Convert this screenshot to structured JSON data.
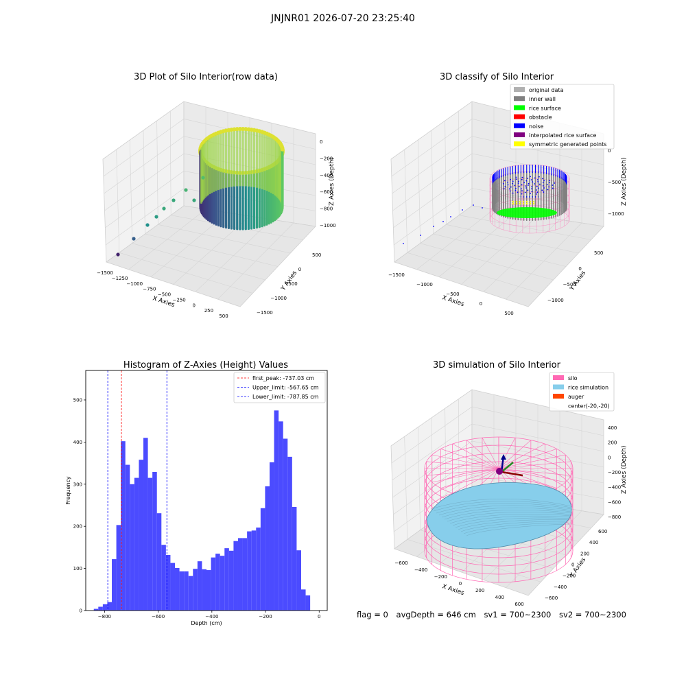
{
  "suptitle": "JNJNR01 2026-07-20 23:25:40",
  "status": {
    "flag": "flag = 0",
    "avg_depth": "avgDepth = 646 cm",
    "sv1": "sv1 = 700~2300",
    "sv2": "sv2 = 700~2300"
  },
  "colors": {
    "original_data": "#b0b0b0",
    "inner_wall": "#808080",
    "rice_surface": "#00ff00",
    "obstacle": "#ff0000",
    "noise": "#0000ff",
    "interpolated_rice_surface": "#800080",
    "symmetric_generated_points": "#ffff00",
    "silo": "#ff69b4",
    "rice_simulation": "#87ceeb",
    "auger": "#ff4500",
    "histogram_bar": "#4b4bff"
  },
  "chart_data": [
    {
      "type": "scatter",
      "title": "3D Plot of Silo Interior(row data)",
      "xlabel": "X Axies",
      "ylabel": "Y Axies",
      "zlabel": "Z Axies (Depth)",
      "xticks": [
        "−1500",
        "−1250",
        "−1000",
        "−750",
        "−500",
        "−250",
        "0",
        "250",
        "500"
      ],
      "yticks": [
        "−1500",
        "−1000",
        "−500",
        "0",
        "500"
      ],
      "zticks": [
        "0",
        "−200",
        "−400",
        "−600",
        "−800",
        "−1000"
      ],
      "colormap": "viridis"
    },
    {
      "type": "scatter",
      "title": "3D classify of Silo Interior",
      "xlabel": "X Axies",
      "ylabel": "Y Axies",
      "zlabel": "Z Axies (Depth)",
      "xticks": [
        "−1500",
        "−1000",
        "−500",
        "0",
        "500"
      ],
      "yticks": [
        "−1000",
        "−500",
        "0",
        "500"
      ],
      "zticks": [
        "0",
        "−500",
        "−1000"
      ],
      "legend": [
        "original data",
        "inner wall",
        "rice surface",
        "obstacle",
        "noise",
        "interpolated rice surface",
        "symmetric generated points"
      ],
      "legend_position": "top-right"
    },
    {
      "type": "bar",
      "title": "Histogram of Z-Axies (Height) Values",
      "xlabel": "Depth (cm)",
      "ylabel": "Frequency",
      "xlim": [
        -870,
        30
      ],
      "ylim": [
        0,
        570
      ],
      "xticks": [
        -800,
        -600,
        -400,
        -200,
        0
      ],
      "yticks": [
        0,
        100,
        200,
        300,
        400,
        500
      ],
      "bin_start": -840,
      "bin_width": 16.8,
      "values": [
        4,
        9,
        15,
        20,
        122,
        203,
        402,
        346,
        300,
        315,
        358,
        410,
        315,
        329,
        231,
        156,
        132,
        113,
        101,
        93,
        93,
        82,
        99,
        117,
        98,
        96,
        126,
        135,
        130,
        148,
        142,
        165,
        172,
        172,
        188,
        190,
        197,
        243,
        295,
        352,
        475,
        449,
        408,
        365,
        246,
        143,
        50,
        36
      ],
      "vlines": [
        {
          "label": "first_peak: -737.03 cm",
          "x": -737.03,
          "color": "#ff0000"
        },
        {
          "label": "Upper_limit: -567.65 cm",
          "x": -567.65,
          "color": "#0000ff"
        },
        {
          "label": "Lower_limit: -787.85 cm",
          "x": -787.85,
          "color": "#0000ff"
        }
      ],
      "legend_position": "top-right"
    },
    {
      "type": "area",
      "title": "3D simulation of Silo Interior",
      "xlabel": "X Axies",
      "ylabel": "Y Axies",
      "zlabel": "Z Axies (Depth)",
      "xticks": [
        "−600",
        "−400",
        "−200",
        "0",
        "200",
        "400",
        "600"
      ],
      "yticks": [
        "−600",
        "−400",
        "−200",
        "0",
        "200",
        "400",
        "600"
      ],
      "zticks": [
        "400",
        "200",
        "0",
        "−200",
        "−400",
        "−600",
        "−800"
      ],
      "legend": [
        "silo",
        "rice simulation",
        "auger",
        "center(-20,-20)"
      ],
      "legend_position": "top-right"
    }
  ]
}
